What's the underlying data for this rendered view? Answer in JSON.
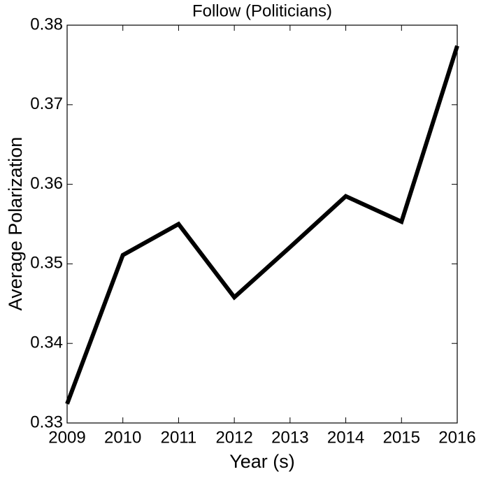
{
  "chart_data": {
    "type": "line",
    "title": "Follow (Politicians)",
    "x_label": "Year (s)",
    "y_label": "Average Polarization",
    "x": [
      2009,
      2010,
      2011,
      2012,
      2013,
      2014,
      2015,
      2016
    ],
    "series": [
      {
        "name": "Follow (Politicians)",
        "color": "#000000",
        "values": [
          0.3324,
          0.3511,
          0.355,
          0.3458,
          0.3521,
          0.3585,
          0.3553,
          0.3774
        ]
      }
    ],
    "xlim": [
      2009,
      2016
    ],
    "xticks": [
      2009,
      2010,
      2011,
      2012,
      2013,
      2014,
      2015,
      2016
    ],
    "ylim": [
      0.33,
      0.38
    ],
    "yticks": [
      0.33,
      0.34,
      0.35,
      0.36,
      0.37,
      0.38
    ],
    "grid": false
  }
}
